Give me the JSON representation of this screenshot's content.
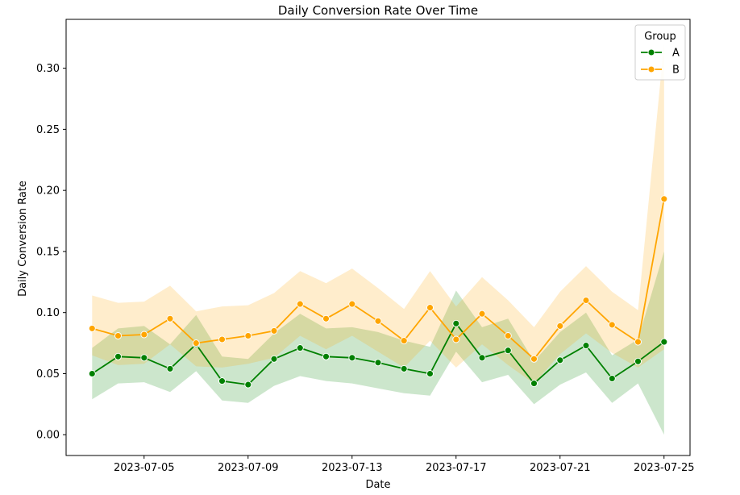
{
  "chart_data": {
    "type": "line",
    "title": "Daily Conversion Rate Over Time",
    "xlabel": "Date",
    "ylabel": "Daily Conversion Rate",
    "x": [
      "2023-07-03",
      "2023-07-04",
      "2023-07-05",
      "2023-07-06",
      "2023-07-07",
      "2023-07-08",
      "2023-07-09",
      "2023-07-10",
      "2023-07-11",
      "2023-07-12",
      "2023-07-13",
      "2023-07-14",
      "2023-07-15",
      "2023-07-16",
      "2023-07-17",
      "2023-07-18",
      "2023-07-19",
      "2023-07-20",
      "2023-07-21",
      "2023-07-22",
      "2023-07-23",
      "2023-07-24",
      "2023-07-25"
    ],
    "xlim": [
      "2023-07-02",
      "2023-07-26"
    ],
    "xticks": [
      "2023-07-05",
      "2023-07-09",
      "2023-07-13",
      "2023-07-17",
      "2023-07-21",
      "2023-07-25"
    ],
    "ylim": [
      -0.017,
      0.34
    ],
    "yticks": [
      "0.00",
      "0.05",
      "0.10",
      "0.15",
      "0.20",
      "0.25",
      "0.30"
    ],
    "grid": false,
    "legend": {
      "title": "Group",
      "placement": "top-right"
    },
    "series": [
      {
        "name": "A",
        "color": "#008000",
        "marker": "circle",
        "values": [
          0.05,
          0.064,
          0.063,
          0.054,
          0.074,
          0.044,
          0.041,
          0.062,
          0.071,
          0.064,
          0.063,
          0.059,
          0.054,
          0.05,
          0.091,
          0.063,
          0.069,
          0.042,
          0.061,
          0.073,
          0.046,
          0.06,
          0.076
        ],
        "ci_lower": [
          0.029,
          0.042,
          0.043,
          0.035,
          0.052,
          0.028,
          0.026,
          0.04,
          0.048,
          0.044,
          0.042,
          0.038,
          0.034,
          0.032,
          0.068,
          0.043,
          0.049,
          0.025,
          0.041,
          0.051,
          0.026,
          0.042,
          0.0
        ],
        "ci_upper": [
          0.071,
          0.087,
          0.089,
          0.074,
          0.098,
          0.064,
          0.062,
          0.083,
          0.099,
          0.087,
          0.088,
          0.084,
          0.077,
          0.072,
          0.118,
          0.088,
          0.095,
          0.06,
          0.084,
          0.1,
          0.065,
          0.078,
          0.15
        ]
      },
      {
        "name": "B",
        "color": "#ffa500",
        "marker": "circle",
        "values": [
          0.087,
          0.081,
          0.082,
          0.095,
          0.075,
          0.078,
          0.081,
          0.085,
          0.107,
          0.095,
          0.107,
          0.093,
          0.077,
          0.104,
          0.078,
          0.099,
          0.081,
          0.062,
          0.089,
          0.11,
          0.09,
          0.076,
          0.193
        ],
        "ci_lower": [
          0.065,
          0.057,
          0.058,
          0.074,
          0.056,
          0.055,
          0.058,
          0.063,
          0.081,
          0.07,
          0.081,
          0.068,
          0.055,
          0.077,
          0.055,
          0.074,
          0.057,
          0.042,
          0.066,
          0.083,
          0.067,
          0.055,
          0.07
        ],
        "ci_upper": [
          0.114,
          0.108,
          0.109,
          0.122,
          0.101,
          0.105,
          0.106,
          0.116,
          0.134,
          0.124,
          0.136,
          0.12,
          0.103,
          0.134,
          0.105,
          0.129,
          0.11,
          0.088,
          0.117,
          0.138,
          0.117,
          0.102,
          0.32
        ]
      }
    ]
  }
}
